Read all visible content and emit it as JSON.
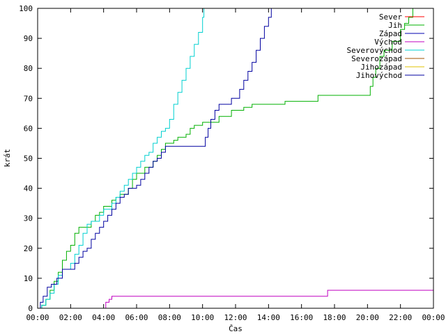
{
  "chart_data": {
    "type": "line",
    "title": "",
    "xlabel": "Čas",
    "ylabel": "krát",
    "xlim": [
      "00:00",
      "00:00"
    ],
    "ylim": [
      0,
      100
    ],
    "grid": false,
    "legend_position": "top-right",
    "x_tick_labels": [
      "00:00",
      "02:00",
      "04:00",
      "06:00",
      "08:00",
      "10:00",
      "12:00",
      "14:00",
      "16:00",
      "18:00",
      "20:00",
      "22:00",
      "00:00"
    ],
    "y_tick_labels": [
      "0",
      "10",
      "20",
      "30",
      "40",
      "50",
      "60",
      "70",
      "80",
      "90",
      "100"
    ],
    "series": [
      {
        "name": "Sever",
        "color": "#ff0000",
        "points": []
      },
      {
        "name": "Jih",
        "color": "#00b000",
        "points": [
          [
            "00:00",
            0
          ],
          [
            "00:15",
            1
          ],
          [
            "00:30",
            3
          ],
          [
            "00:45",
            6
          ],
          [
            "01:00",
            9
          ],
          [
            "01:15",
            12
          ],
          [
            "01:30",
            16
          ],
          [
            "01:45",
            19
          ],
          [
            "02:00",
            21
          ],
          [
            "02:15",
            25
          ],
          [
            "02:30",
            27
          ],
          [
            "03:00",
            27
          ],
          [
            "03:15",
            29
          ],
          [
            "03:30",
            31
          ],
          [
            "03:45",
            32
          ],
          [
            "04:00",
            34
          ],
          [
            "04:30",
            36
          ],
          [
            "04:45",
            37
          ],
          [
            "05:00",
            38
          ],
          [
            "05:30",
            40
          ],
          [
            "05:45",
            43
          ],
          [
            "06:00",
            45
          ],
          [
            "06:30",
            47
          ],
          [
            "07:00",
            49
          ],
          [
            "07:15",
            51
          ],
          [
            "07:30",
            53
          ],
          [
            "07:45",
            55
          ],
          [
            "08:15",
            56
          ],
          [
            "08:30",
            57
          ],
          [
            "09:00",
            58
          ],
          [
            "09:15",
            60
          ],
          [
            "09:30",
            61
          ],
          [
            "10:00",
            62
          ],
          [
            "10:15",
            62
          ],
          [
            "11:00",
            64
          ],
          [
            "11:30",
            64
          ],
          [
            "11:45",
            66
          ],
          [
            "12:30",
            67
          ],
          [
            "13:00",
            68
          ],
          [
            "14:00",
            68
          ],
          [
            "15:00",
            69
          ],
          [
            "16:00",
            69
          ],
          [
            "17:00",
            71
          ],
          [
            "18:00",
            71
          ],
          [
            "19:00",
            71
          ],
          [
            "20:00",
            71
          ],
          [
            "20:10",
            74
          ],
          [
            "20:20",
            77
          ],
          [
            "20:30",
            80
          ],
          [
            "20:45",
            84
          ],
          [
            "21:00",
            86
          ],
          [
            "21:30",
            89
          ],
          [
            "22:00",
            93
          ],
          [
            "22:15",
            95
          ],
          [
            "22:30",
            97
          ],
          [
            "22:45",
            100
          ]
        ]
      },
      {
        "name": "Západ",
        "color": "#0000b0",
        "points": []
      },
      {
        "name": "Východ",
        "color": "#c000c0",
        "points": [
          [
            "00:00",
            0
          ],
          [
            "04:05",
            0
          ],
          [
            "04:08",
            2
          ],
          [
            "04:20",
            3
          ],
          [
            "04:30",
            4
          ],
          [
            "17:30",
            4
          ],
          [
            "17:35",
            6
          ],
          [
            "24:00",
            6
          ]
        ]
      },
      {
        "name": "Severovýchod",
        "color": "#00d0d0",
        "points": [
          [
            "00:00",
            0
          ],
          [
            "00:15",
            1
          ],
          [
            "00:30",
            3
          ],
          [
            "00:45",
            5
          ],
          [
            "01:00",
            8
          ],
          [
            "01:15",
            11
          ],
          [
            "01:30",
            13
          ],
          [
            "02:00",
            15
          ],
          [
            "02:15",
            18
          ],
          [
            "02:30",
            21
          ],
          [
            "02:45",
            25
          ],
          [
            "03:00",
            28
          ],
          [
            "03:15",
            29
          ],
          [
            "03:45",
            31
          ],
          [
            "04:00",
            33
          ],
          [
            "04:30",
            35
          ],
          [
            "04:45",
            37
          ],
          [
            "05:00",
            39
          ],
          [
            "05:15",
            41
          ],
          [
            "05:30",
            43
          ],
          [
            "05:45",
            45
          ],
          [
            "06:00",
            47
          ],
          [
            "06:15",
            49
          ],
          [
            "06:30",
            51
          ],
          [
            "06:45",
            52
          ],
          [
            "07:00",
            55
          ],
          [
            "07:15",
            57
          ],
          [
            "07:30",
            59
          ],
          [
            "07:45",
            60
          ],
          [
            "08:00",
            63
          ],
          [
            "08:15",
            68
          ],
          [
            "08:30",
            72
          ],
          [
            "08:45",
            76
          ],
          [
            "09:00",
            80
          ],
          [
            "09:15",
            84
          ],
          [
            "09:30",
            88
          ],
          [
            "09:45",
            92
          ],
          [
            "10:00",
            97
          ],
          [
            "10:05",
            100
          ]
        ]
      },
      {
        "name": "Severozápad",
        "color": "#a05000",
        "points": []
      },
      {
        "name": "Jihozápad",
        "color": "#e0c000",
        "points": []
      },
      {
        "name": "Jihovýchod",
        "color": "#0000a0",
        "points": [
          [
            "00:00",
            0
          ],
          [
            "00:10",
            2
          ],
          [
            "00:20",
            4
          ],
          [
            "00:35",
            7
          ],
          [
            "00:50",
            8
          ],
          [
            "01:10",
            10
          ],
          [
            "01:30",
            13
          ],
          [
            "02:00",
            13
          ],
          [
            "02:15",
            15
          ],
          [
            "02:30",
            17
          ],
          [
            "02:45",
            19
          ],
          [
            "03:00",
            20
          ],
          [
            "03:15",
            23
          ],
          [
            "03:30",
            25
          ],
          [
            "03:45",
            27
          ],
          [
            "04:00",
            29
          ],
          [
            "04:15",
            31
          ],
          [
            "04:30",
            33
          ],
          [
            "04:45",
            35
          ],
          [
            "05:00",
            37
          ],
          [
            "05:15",
            38
          ],
          [
            "05:30",
            40
          ],
          [
            "06:00",
            41
          ],
          [
            "06:15",
            43
          ],
          [
            "06:30",
            45
          ],
          [
            "06:45",
            47
          ],
          [
            "07:00",
            49
          ],
          [
            "07:15",
            50
          ],
          [
            "07:30",
            52
          ],
          [
            "07:45",
            54
          ],
          [
            "08:00",
            54
          ],
          [
            "10:00",
            54
          ],
          [
            "10:10",
            57
          ],
          [
            "10:20",
            60
          ],
          [
            "10:30",
            63
          ],
          [
            "10:45",
            66
          ],
          [
            "11:00",
            68
          ],
          [
            "11:30",
            68
          ],
          [
            "11:45",
            70
          ],
          [
            "12:00",
            70
          ],
          [
            "12:15",
            73
          ],
          [
            "12:30",
            76
          ],
          [
            "12:45",
            79
          ],
          [
            "13:00",
            82
          ],
          [
            "13:15",
            86
          ],
          [
            "13:30",
            90
          ],
          [
            "13:45",
            94
          ],
          [
            "14:00",
            97
          ],
          [
            "14:10",
            100
          ]
        ]
      }
    ]
  }
}
